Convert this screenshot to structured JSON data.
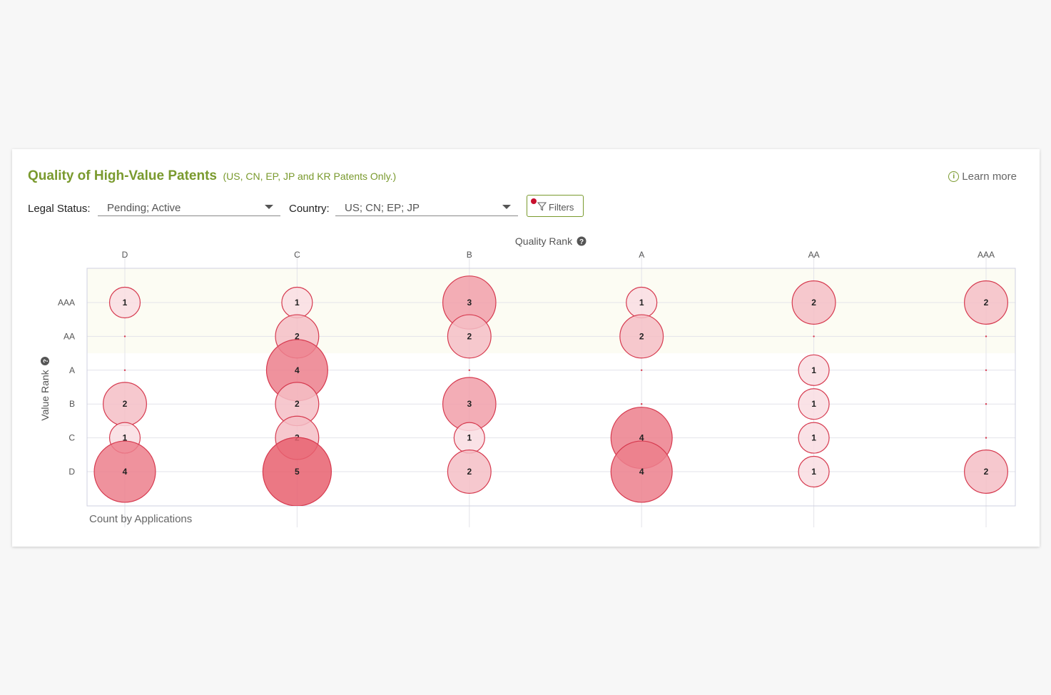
{
  "header": {
    "title": "Quality of High-Value Patents",
    "subtitle": "(US, CN, EP, JP and KR Patents Only.)",
    "learn_more": "Learn more"
  },
  "filters": {
    "legal_status_label": "Legal Status:",
    "legal_status_value": "Pending; Active",
    "country_label": "Country:",
    "country_value": "US; CN; EP; JP",
    "filters_button": "Filters"
  },
  "chart_data": {
    "type": "scatter",
    "xlabel": "Quality Rank",
    "ylabel": "Value Rank",
    "footer_label": "Count by Applications",
    "x_categories": [
      "D",
      "C",
      "B",
      "A",
      "AA",
      "AAA"
    ],
    "y_categories": [
      "AAA",
      "AA",
      "A",
      "B",
      "C",
      "D"
    ],
    "points": [
      {
        "x": "D",
        "y": "AAA",
        "count": 1
      },
      {
        "x": "D",
        "y": "AA",
        "count": 0
      },
      {
        "x": "D",
        "y": "A",
        "count": 0
      },
      {
        "x": "D",
        "y": "B",
        "count": 2
      },
      {
        "x": "D",
        "y": "C",
        "count": 1
      },
      {
        "x": "D",
        "y": "D",
        "count": 4
      },
      {
        "x": "C",
        "y": "AAA",
        "count": 1
      },
      {
        "x": "C",
        "y": "AA",
        "count": 2
      },
      {
        "x": "C",
        "y": "A",
        "count": 4
      },
      {
        "x": "C",
        "y": "B",
        "count": 2
      },
      {
        "x": "C",
        "y": "C",
        "count": 2
      },
      {
        "x": "C",
        "y": "D",
        "count": 5
      },
      {
        "x": "B",
        "y": "AAA",
        "count": 3
      },
      {
        "x": "B",
        "y": "AA",
        "count": 2
      },
      {
        "x": "B",
        "y": "A",
        "count": 0
      },
      {
        "x": "B",
        "y": "B",
        "count": 3
      },
      {
        "x": "B",
        "y": "C",
        "count": 1
      },
      {
        "x": "B",
        "y": "D",
        "count": 2
      },
      {
        "x": "A",
        "y": "AAA",
        "count": 1
      },
      {
        "x": "A",
        "y": "AA",
        "count": 2
      },
      {
        "x": "A",
        "y": "A",
        "count": 0
      },
      {
        "x": "A",
        "y": "B",
        "count": 0
      },
      {
        "x": "A",
        "y": "C",
        "count": 4
      },
      {
        "x": "A",
        "y": "D",
        "count": 4
      },
      {
        "x": "AA",
        "y": "AAA",
        "count": 2
      },
      {
        "x": "AA",
        "y": "AA",
        "count": 0
      },
      {
        "x": "AA",
        "y": "A",
        "count": 1
      },
      {
        "x": "AA",
        "y": "B",
        "count": 1
      },
      {
        "x": "AA",
        "y": "C",
        "count": 1
      },
      {
        "x": "AA",
        "y": "D",
        "count": 1
      },
      {
        "x": "AAA",
        "y": "AAA",
        "count": 2
      },
      {
        "x": "AAA",
        "y": "AA",
        "count": 0
      },
      {
        "x": "AAA",
        "y": "A",
        "count": 0
      },
      {
        "x": "AAA",
        "y": "B",
        "count": 0
      },
      {
        "x": "AAA",
        "y": "C",
        "count": 0
      },
      {
        "x": "AAA",
        "y": "D",
        "count": 2
      }
    ],
    "highlight_rows": [
      "AAA",
      "AA"
    ],
    "colors": {
      "bubble_stroke": "#d63a4f",
      "bubble_low": "#f9dde2",
      "bubble_high": "#e8606f",
      "highlight_band": "#fcfcf3",
      "grid": "#e3e3ea"
    }
  }
}
